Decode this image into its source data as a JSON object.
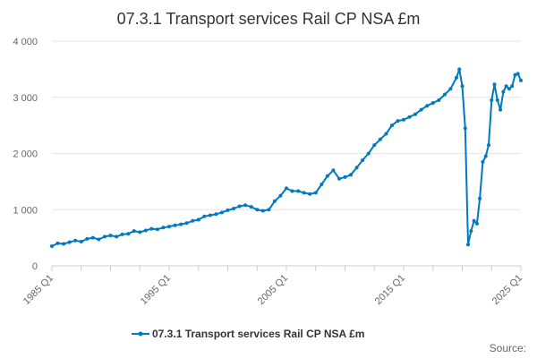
{
  "chart_data": {
    "type": "line",
    "title": "07.3.1 Transport services Rail CP NSA £m",
    "xlabel": "",
    "ylabel": "",
    "x_range": [
      1985.0,
      2025.0
    ],
    "ylim": [
      0,
      4000
    ],
    "y_ticks": [
      0,
      1000,
      2000,
      3000,
      4000
    ],
    "y_tick_labels": [
      "0",
      "1 000",
      "2 000",
      "3 000",
      "4 000"
    ],
    "x_tick_labels": [
      "1985 Q1",
      "1995 Q1",
      "2005 Q1",
      "2015 Q1",
      "2025 Q1"
    ],
    "x_tick_positions": [
      1985,
      1995,
      2005,
      2015,
      2025
    ],
    "grid": "horizontal",
    "legend_position": "bottom",
    "series": [
      {
        "name": "07.3.1 Transport services Rail CP NSA £m",
        "color": "#0079c1",
        "points": [
          [
            1985.0,
            350
          ],
          [
            1985.5,
            400
          ],
          [
            1986.0,
            390
          ],
          [
            1986.5,
            420
          ],
          [
            1987.0,
            450
          ],
          [
            1987.5,
            430
          ],
          [
            1988.0,
            480
          ],
          [
            1988.5,
            500
          ],
          [
            1989.0,
            470
          ],
          [
            1989.5,
            520
          ],
          [
            1990.0,
            540
          ],
          [
            1990.5,
            520
          ],
          [
            1991.0,
            560
          ],
          [
            1991.5,
            570
          ],
          [
            1992.0,
            620
          ],
          [
            1992.5,
            600
          ],
          [
            1993.0,
            630
          ],
          [
            1993.5,
            660
          ],
          [
            1994.0,
            650
          ],
          [
            1994.5,
            680
          ],
          [
            1995.0,
            700
          ],
          [
            1995.5,
            720
          ],
          [
            1996.0,
            740
          ],
          [
            1996.5,
            760
          ],
          [
            1997.0,
            800
          ],
          [
            1997.5,
            820
          ],
          [
            1998.0,
            880
          ],
          [
            1998.5,
            900
          ],
          [
            1999.0,
            920
          ],
          [
            1999.5,
            950
          ],
          [
            2000.0,
            990
          ],
          [
            2000.5,
            1020
          ],
          [
            2001.0,
            1060
          ],
          [
            2001.5,
            1080
          ],
          [
            2002.0,
            1050
          ],
          [
            2002.5,
            1000
          ],
          [
            2003.0,
            980
          ],
          [
            2003.5,
            1000
          ],
          [
            2004.0,
            1150
          ],
          [
            2004.5,
            1250
          ],
          [
            2005.0,
            1380
          ],
          [
            2005.5,
            1330
          ],
          [
            2006.0,
            1330
          ],
          [
            2006.5,
            1300
          ],
          [
            2007.0,
            1280
          ],
          [
            2007.5,
            1300
          ],
          [
            2008.0,
            1450
          ],
          [
            2008.5,
            1600
          ],
          [
            2009.0,
            1700
          ],
          [
            2009.5,
            1550
          ],
          [
            2010.0,
            1580
          ],
          [
            2010.5,
            1620
          ],
          [
            2011.0,
            1750
          ],
          [
            2011.5,
            1880
          ],
          [
            2012.0,
            2000
          ],
          [
            2012.5,
            2150
          ],
          [
            2013.0,
            2250
          ],
          [
            2013.5,
            2350
          ],
          [
            2014.0,
            2500
          ],
          [
            2014.5,
            2580
          ],
          [
            2015.0,
            2600
          ],
          [
            2015.5,
            2650
          ],
          [
            2016.0,
            2700
          ],
          [
            2016.5,
            2780
          ],
          [
            2017.0,
            2850
          ],
          [
            2017.5,
            2900
          ],
          [
            2018.0,
            2950
          ],
          [
            2018.5,
            3050
          ],
          [
            2019.0,
            3150
          ],
          [
            2019.5,
            3350
          ],
          [
            2019.75,
            3500
          ],
          [
            2020.0,
            3200
          ],
          [
            2020.25,
            2450
          ],
          [
            2020.5,
            380
          ],
          [
            2020.75,
            620
          ],
          [
            2021.0,
            800
          ],
          [
            2021.25,
            750
          ],
          [
            2021.5,
            1200
          ],
          [
            2021.75,
            1850
          ],
          [
            2022.0,
            1950
          ],
          [
            2022.25,
            2150
          ],
          [
            2022.5,
            2950
          ],
          [
            2022.75,
            3230
          ],
          [
            2023.0,
            2950
          ],
          [
            2023.25,
            2780
          ],
          [
            2023.5,
            3100
          ],
          [
            2023.75,
            3200
          ],
          [
            2024.0,
            3150
          ],
          [
            2024.25,
            3200
          ],
          [
            2024.5,
            3400
          ],
          [
            2024.75,
            3420
          ],
          [
            2025.0,
            3300
          ]
        ]
      }
    ]
  },
  "source_label": "Source:"
}
